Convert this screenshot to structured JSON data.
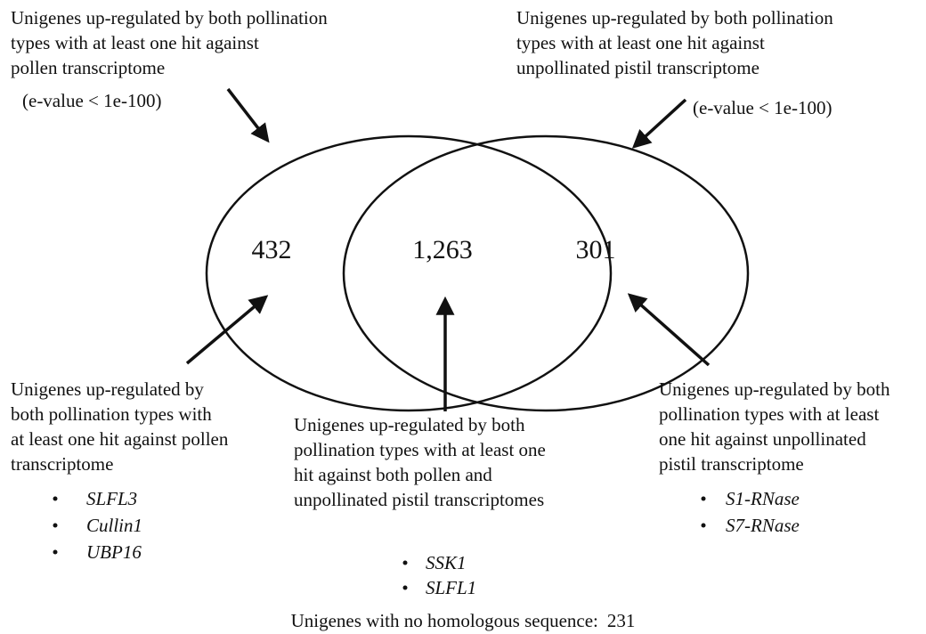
{
  "top_left": {
    "lines": [
      "Unigenes up-regulated by both pollination",
      "types with at least one hit against",
      "pollen transcriptome"
    ],
    "note": "(e-value < 1e-100)"
  },
  "top_right": {
    "lines": [
      "Unigenes up-regulated by both pollination",
      "types with at least one hit against",
      "unpollinated pistil transcriptome"
    ],
    "note": "(e-value < 1e-100)"
  },
  "counts": {
    "left": "432",
    "center": "1,263",
    "right": "301"
  },
  "bottom_left": {
    "lines": [
      "Unigenes up-regulated by",
      "both pollination types with",
      "at least one hit against pollen",
      "transcriptome"
    ],
    "genes": [
      "SLFL3",
      "Cullin1",
      "UBP16"
    ]
  },
  "bottom_center": {
    "lines": [
      "Unigenes up-regulated by both",
      "pollination types with at least one",
      "hit against both pollen and",
      "unpollinated pistil transcriptomes"
    ],
    "genes": [
      "SSK1",
      "SLFL1"
    ]
  },
  "bottom_right": {
    "lines": [
      "Unigenes up-regulated by both",
      "pollination types with at least",
      "one hit against unpollinated",
      "pistil transcriptome"
    ],
    "genes": [
      "S1-RNase",
      "S7-RNase"
    ]
  },
  "footer": {
    "label": "Unigenes with no homologous sequence:",
    "count": "231"
  }
}
